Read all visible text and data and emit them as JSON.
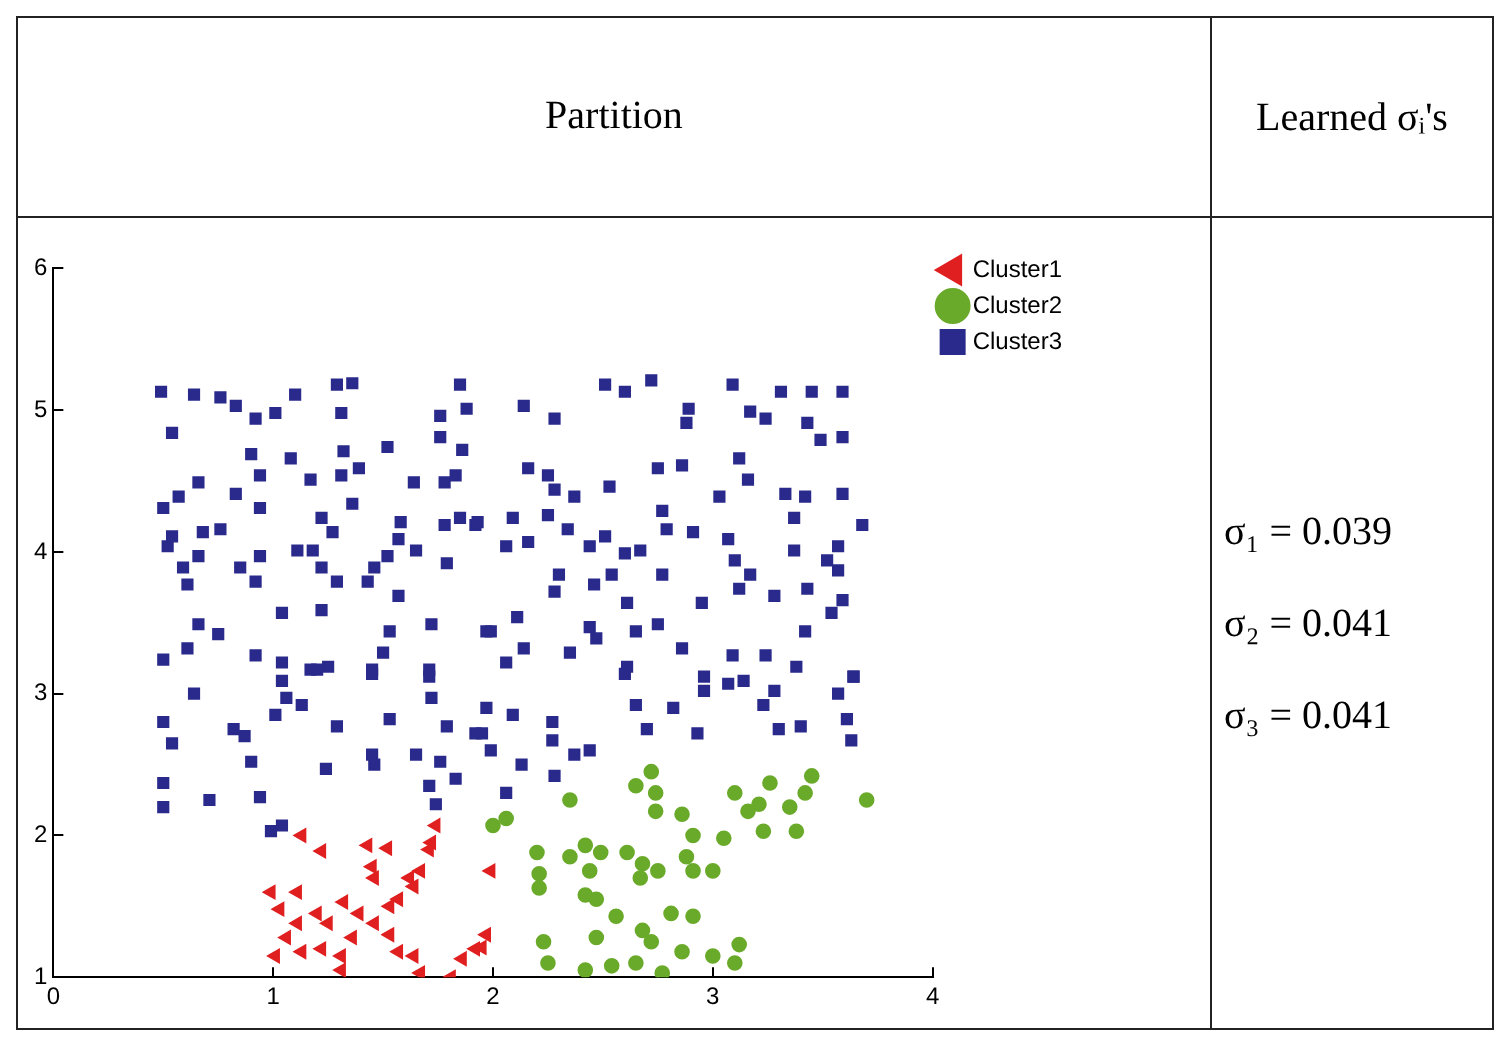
{
  "chart_data": {
    "type": "scatter",
    "title": "Partition",
    "annotations": [
      "Learned σᵢ's",
      "σ₁ = 0.039",
      "σ₂ = 0.041",
      "σ₃ = 0.041"
    ],
    "xlim": [
      0,
      4
    ],
    "xticks": [
      0,
      1,
      2,
      3,
      4
    ],
    "ylim": [
      1,
      6
    ],
    "yticks": [
      1,
      2,
      3,
      4,
      5,
      6
    ],
    "grid": false,
    "legend": "top right",
    "series": [
      {
        "name": "Cluster1",
        "color": "#e02020",
        "marker": "triangle",
        "x": [
          1.13,
          1.22,
          0.99,
          1.03,
          1.11,
          1.06,
          1.01,
          1.13,
          1.22,
          1.2,
          1.11,
          1.25,
          1.32,
          1.31,
          1.31,
          1.36,
          1.39,
          1.46,
          1.43,
          1.52,
          1.45,
          1.46,
          1.53,
          1.57,
          1.62,
          1.64,
          1.67,
          1.71,
          1.74,
          1.53,
          1.57,
          1.64,
          1.67,
          1.81,
          1.86,
          1.92,
          1.97,
          1.99,
          1.72,
          1.95
        ],
        "values": [
          2.0,
          1.89,
          1.6,
          1.48,
          1.6,
          1.28,
          1.15,
          1.18,
          1.2,
          1.45,
          1.38,
          1.38,
          1.53,
          1.15,
          1.05,
          1.28,
          1.45,
          1.38,
          1.93,
          1.91,
          1.78,
          1.7,
          1.5,
          1.55,
          1.7,
          1.64,
          1.75,
          1.9,
          2.07,
          1.3,
          1.18,
          1.15,
          1.03,
          1.0,
          1.13,
          1.2,
          1.3,
          1.75,
          1.95,
          1.21
        ]
      },
      {
        "name": "Cluster2",
        "color": "#6aaa2a",
        "marker": "circle",
        "x": [
          2.72,
          2.65,
          2.74,
          2.74,
          2.35,
          2.06,
          2.86,
          3.1,
          3.26,
          3.45,
          3.42,
          3.35,
          3.16,
          3.21,
          3.7,
          3.38,
          3.23,
          2.91,
          3.05,
          2.2,
          2.21,
          2.21,
          2.35,
          2.42,
          2.49,
          2.44,
          2.42,
          2.47,
          2.61,
          2.68,
          2.75,
          2.67,
          2.88,
          2.91,
          3.0,
          2.56,
          2.81,
          2.91,
          2.47,
          2.68,
          2.72,
          2.23,
          2.25,
          2.42,
          2.54,
          2.65,
          2.77,
          2.86,
          3.0,
          3.1,
          3.12,
          2.0
        ],
        "values": [
          2.45,
          2.35,
          2.3,
          2.17,
          2.25,
          2.12,
          2.15,
          2.3,
          2.37,
          2.42,
          2.3,
          2.2,
          2.17,
          2.22,
          2.25,
          2.03,
          2.03,
          2.0,
          1.98,
          1.88,
          1.73,
          1.63,
          1.85,
          1.93,
          1.88,
          1.75,
          1.58,
          1.55,
          1.88,
          1.8,
          1.75,
          1.7,
          1.85,
          1.75,
          1.75,
          1.43,
          1.45,
          1.43,
          1.28,
          1.33,
          1.25,
          1.25,
          1.1,
          1.05,
          1.08,
          1.1,
          1.03,
          1.18,
          1.15,
          1.1,
          1.23,
          2.07
        ]
      },
      {
        "name": "Cluster3",
        "color": "#2a2a8c",
        "marker": "square",
        "x": [
          0.49,
          0.64,
          0.54,
          0.76,
          0.83,
          0.92,
          1.01,
          1.1,
          1.29,
          1.36,
          1.31,
          1.76,
          1.85,
          1.88,
          1.76,
          1.86,
          0.9,
          0.94,
          1.08,
          1.17,
          1.31,
          1.32,
          1.39,
          1.52,
          1.64,
          1.78,
          1.83,
          0.5,
          0.57,
          0.66,
          0.83,
          0.94,
          0.52,
          0.54,
          0.68,
          0.76,
          0.59,
          0.66,
          0.61,
          0.85,
          0.94,
          0.92,
          1.11,
          1.18,
          1.22,
          1.27,
          1.22,
          1.29,
          1.36,
          1.43,
          1.46,
          1.52,
          1.58,
          1.57,
          1.65,
          1.57,
          1.78,
          1.85,
          1.92,
          1.79,
          1.72,
          1.53,
          1.5,
          1.45,
          1.71,
          1.22,
          1.04,
          1.17,
          1.25,
          1.04,
          0.92,
          0.66,
          0.75,
          0.61,
          0.5,
          1.97,
          2.14,
          2.28,
          2.51,
          2.6,
          2.72,
          2.89,
          2.88,
          3.09,
          3.17,
          3.24,
          3.31,
          3.45,
          3.59,
          3.43,
          3.49,
          3.59,
          2.16,
          2.25,
          2.28,
          2.37,
          2.53,
          2.75,
          2.86,
          3.12,
          3.16,
          3.03,
          3.33,
          3.42,
          3.37,
          3.59,
          3.68,
          1.93,
          2.09,
          2.06,
          2.16,
          2.25,
          2.34,
          2.44,
          2.51,
          2.6,
          2.67,
          2.77,
          2.79,
          2.91,
          3.07,
          3.1,
          3.17,
          3.12,
          3.37,
          3.52,
          3.57,
          3.57,
          3.43,
          3.28,
          3.59,
          3.54,
          3.42,
          2.3,
          2.28,
          2.46,
          2.54,
          2.77,
          2.61,
          2.95,
          2.75,
          2.44,
          2.47,
          2.65,
          2.86,
          1.99,
          2.11,
          2.14,
          2.06,
          2.35,
          2.61,
          3.09,
          3.24,
          3.38,
          3.64,
          2.96,
          3.14,
          0.5,
          0.54,
          0.5,
          0.5,
          0.64,
          0.71,
          0.82,
          0.87,
          0.9,
          0.94,
          1.01,
          0.99,
          1.04,
          1.04,
          1.06,
          1.13,
          1.2,
          1.29,
          1.24,
          1.45,
          1.45,
          1.46,
          1.53,
          1.65,
          1.71,
          1.72,
          1.76,
          1.71,
          1.74,
          1.79,
          1.83,
          1.92,
          1.97,
          1.99,
          2.06,
          1.95,
          2.09,
          2.13,
          2.27,
          2.27,
          2.37,
          2.28,
          2.44,
          2.6,
          2.65,
          2.7,
          2.82,
          2.93,
          2.96,
          3.07,
          3.23,
          3.3,
          3.4,
          3.28,
          3.57,
          3.61,
          3.63,
          3.64
        ],
        "values": [
          5.13,
          5.11,
          4.84,
          5.09,
          5.03,
          4.94,
          4.98,
          5.11,
          5.18,
          5.19,
          4.98,
          4.96,
          5.18,
          5.01,
          4.81,
          4.72,
          4.69,
          4.54,
          4.66,
          4.51,
          4.54,
          4.71,
          4.59,
          4.74,
          4.49,
          4.49,
          4.54,
          4.31,
          4.39,
          4.49,
          4.41,
          4.31,
          4.04,
          4.11,
          4.14,
          4.16,
          3.89,
          3.97,
          3.77,
          3.89,
          3.97,
          3.79,
          4.01,
          4.01,
          4.24,
          4.14,
          3.89,
          3.79,
          4.34,
          3.79,
          3.89,
          3.97,
          4.21,
          4.09,
          4.01,
          3.69,
          4.19,
          4.24,
          4.19,
          3.92,
          3.49,
          3.44,
          3.29,
          3.17,
          3.17,
          3.59,
          3.57,
          3.17,
          3.19,
          3.22,
          3.27,
          3.49,
          3.42,
          3.32,
          3.24,
          3.44,
          5.03,
          4.94,
          5.18,
          5.13,
          5.21,
          5.01,
          4.91,
          5.18,
          4.99,
          4.94,
          5.13,
          5.13,
          5.13,
          4.91,
          4.79,
          4.81,
          4.59,
          4.54,
          4.44,
          4.39,
          4.46,
          4.59,
          4.61,
          4.66,
          4.51,
          4.39,
          4.41,
          4.39,
          4.24,
          4.41,
          4.19,
          4.21,
          4.24,
          4.04,
          4.07,
          4.26,
          4.16,
          4.04,
          4.11,
          3.99,
          4.01,
          4.29,
          4.16,
          4.14,
          4.09,
          3.94,
          3.84,
          3.74,
          4.01,
          3.94,
          4.04,
          3.87,
          3.74,
          3.69,
          3.66,
          3.57,
          3.44,
          3.84,
          3.72,
          3.77,
          3.84,
          3.84,
          3.64,
          3.64,
          3.49,
          3.47,
          3.39,
          3.44,
          3.32,
          3.44,
          3.54,
          3.32,
          3.22,
          3.29,
          3.19,
          3.27,
          3.27,
          3.19,
          3.12,
          3.12,
          3.09,
          2.8,
          2.65,
          2.37,
          2.2,
          3.0,
          2.25,
          2.75,
          2.7,
          2.52,
          2.27,
          2.85,
          2.03,
          2.07,
          3.09,
          2.97,
          2.92,
          3.17,
          2.77,
          2.47,
          3.14,
          2.57,
          2.5,
          2.82,
          2.57,
          3.12,
          2.97,
          2.52,
          2.35,
          2.22,
          2.77,
          2.4,
          2.72,
          2.9,
          2.6,
          2.3,
          2.72,
          2.85,
          2.5,
          2.8,
          2.67,
          2.57,
          2.42,
          2.6,
          3.14,
          2.92,
          2.75,
          2.9,
          2.72,
          3.02,
          3.07,
          2.92,
          2.75,
          2.77,
          3.02,
          3.0,
          2.82,
          2.67,
          3.12
        ]
      }
    ]
  }
}
